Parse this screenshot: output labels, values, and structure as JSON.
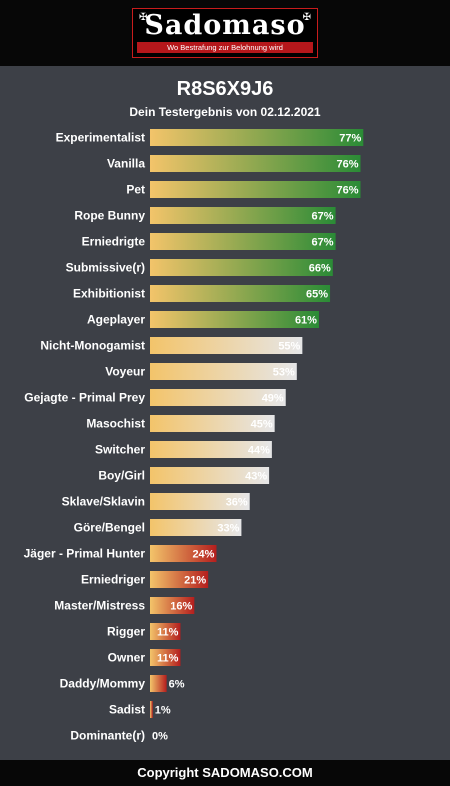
{
  "header": {
    "logo_text": "Sadomaso",
    "logo_tagline": "Wo Bestrafung zur Belohnung wird"
  },
  "result": {
    "code": "R8S6X9J6",
    "subtitle": "Dein Testergebnis von 02.12.2021"
  },
  "chart_data": {
    "type": "bar",
    "orientation": "horizontal",
    "categories": [
      "Experimentalist",
      "Vanilla",
      "Pet",
      "Rope Bunny",
      "Erniedrigte",
      "Submissive(r)",
      "Exhibitionist",
      "Ageplayer",
      "Nicht-Monogamist",
      "Voyeur",
      "Gejagte - Primal Prey",
      "Masochist",
      "Switcher",
      "Boy/Girl",
      "Sklave/Sklavin",
      "Göre/Bengel",
      "Jäger - Primal Hunter",
      "Erniedriger",
      "Master/Mistress",
      "Rigger",
      "Owner",
      "Daddy/Mommy",
      "Sadist",
      "Dominante(r)"
    ],
    "values": [
      77,
      76,
      76,
      67,
      67,
      66,
      65,
      61,
      55,
      53,
      49,
      45,
      44,
      43,
      36,
      33,
      24,
      21,
      16,
      11,
      11,
      6,
      1,
      0
    ],
    "value_suffix": "%",
    "xlim": [
      0,
      100
    ],
    "colors": {
      "bar_start": "#f3c46a",
      "high_end": "#2a8b36",
      "mid_end": "#e6e6e8",
      "low_end": "#b41e1e"
    }
  },
  "footer": {
    "text": "Copyright SADOMASO.COM"
  }
}
